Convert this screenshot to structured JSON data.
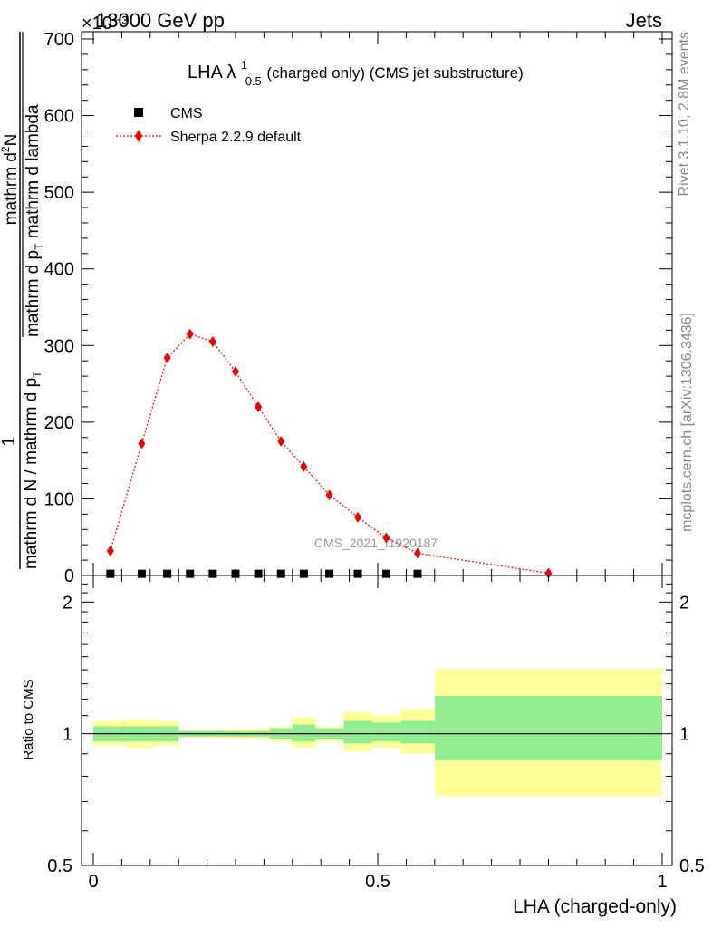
{
  "header": {
    "left": "13000 GeV pp",
    "right": "Jets",
    "exponent": "×10⁻³"
  },
  "side": {
    "rivet": "Rivet 3.1.10,  2.8M events",
    "mcplots": "mcplots.cern.ch [arXiv:1306.3436]"
  },
  "plot_title": {
    "main": "LHA λ",
    "sup": "1",
    "sub": "0.5",
    "tail": " (charged only) (CMS jet substructure)"
  },
  "watermark": "CMS_2021_I1920187",
  "colors": {
    "mc": "#ee0000",
    "data": "#000000",
    "band_inner": "#90ee90",
    "band_outer": "#ffff99"
  },
  "chart_data": [
    {
      "type": "line",
      "panel": "main",
      "ylabel": "1 / mathrm d N / mathrm d p_T mathrm d^2N / mathrm d p_T mathrm d lambda",
      "ylabel_parts": {
        "numerator": "mathrm d",
        "numerator_sup": "2",
        "numerator_tail": "N",
        "denominator": "mathrm d p",
        "denominator_sub": "T",
        "denominator_tail": " mathrm d lambda",
        "left_numerator": "1",
        "left_denominator": "mathrm d N / mathrm d p",
        "left_denominator_sub": "T"
      },
      "ylim": [
        0,
        0.7
      ],
      "yticks": [
        0,
        0.1,
        0.2,
        0.3,
        0.4,
        0.5,
        0.6,
        0.7
      ],
      "yticklabels": [
        "0",
        "100",
        "200",
        "300",
        "400",
        "500",
        "600",
        "700"
      ],
      "xlim": [
        0,
        1
      ],
      "legend": [
        {
          "name": "CMS",
          "marker": "square"
        },
        {
          "name": "Sherpa 2.2.9 default",
          "marker": "diamond"
        }
      ],
      "legend_position": "top-left",
      "series": [
        {
          "name": "CMS",
          "x": [
            0.03,
            0.085,
            0.13,
            0.17,
            0.21,
            0.25,
            0.29,
            0.33,
            0.37,
            0.415,
            0.465,
            0.515,
            0.57
          ],
          "y": [
            0.001,
            0.001,
            0.001,
            0.001,
            0.001,
            0.001,
            0.001,
            0.001,
            0.001,
            0.001,
            0.001,
            0.001,
            0.001
          ]
        },
        {
          "name": "Sherpa 2.2.9 default",
          "x": [
            0.03,
            0.085,
            0.13,
            0.17,
            0.21,
            0.25,
            0.29,
            0.33,
            0.37,
            0.415,
            0.465,
            0.515,
            0.57,
            0.8
          ],
          "y": [
            0.032,
            0.172,
            0.284,
            0.315,
            0.305,
            0.266,
            0.22,
            0.175,
            0.142,
            0.105,
            0.076,
            0.049,
            0.029,
            0.003
          ]
        }
      ]
    },
    {
      "type": "area",
      "panel": "ratio",
      "ylabel": "Ratio to CMS",
      "xlabel": "LHA (charged-only)",
      "ylim": [
        0.5,
        2.3
      ],
      "log_y": true,
      "yticks": [
        0.5,
        1,
        2
      ],
      "yticklabels": [
        "0.5",
        "1",
        "2"
      ],
      "xticks": [
        0,
        0.5,
        1
      ],
      "xticklabels": [
        "0",
        "0.5",
        "1"
      ],
      "reference": 1,
      "bins": [
        {
          "lo": 0.0,
          "hi": 0.06,
          "inner": [
            0.96,
            1.04
          ],
          "outer": [
            0.94,
            1.07
          ]
        },
        {
          "lo": 0.06,
          "hi": 0.11,
          "inner": [
            0.96,
            1.04
          ],
          "outer": [
            0.93,
            1.08
          ]
        },
        {
          "lo": 0.11,
          "hi": 0.15,
          "inner": [
            0.96,
            1.04
          ],
          "outer": [
            0.94,
            1.07
          ]
        },
        {
          "lo": 0.15,
          "hi": 0.19,
          "inner": [
            0.985,
            1.015
          ],
          "outer": [
            0.98,
            1.02
          ]
        },
        {
          "lo": 0.19,
          "hi": 0.23,
          "inner": [
            0.985,
            1.015
          ],
          "outer": [
            0.98,
            1.02
          ]
        },
        {
          "lo": 0.23,
          "hi": 0.27,
          "inner": [
            0.985,
            1.015
          ],
          "outer": [
            0.975,
            1.025
          ]
        },
        {
          "lo": 0.27,
          "hi": 0.31,
          "inner": [
            0.985,
            1.015
          ],
          "outer": [
            0.975,
            1.025
          ]
        },
        {
          "lo": 0.31,
          "hi": 0.35,
          "inner": [
            0.97,
            1.03
          ],
          "outer": [
            0.96,
            1.04
          ]
        },
        {
          "lo": 0.35,
          "hi": 0.39,
          "inner": [
            0.96,
            1.05
          ],
          "outer": [
            0.93,
            1.09
          ]
        },
        {
          "lo": 0.39,
          "hi": 0.44,
          "inner": [
            0.97,
            1.03
          ],
          "outer": [
            0.96,
            1.04
          ]
        },
        {
          "lo": 0.44,
          "hi": 0.49,
          "inner": [
            0.95,
            1.07
          ],
          "outer": [
            0.91,
            1.12
          ]
        },
        {
          "lo": 0.49,
          "hi": 0.54,
          "inner": [
            0.96,
            1.06
          ],
          "outer": [
            0.93,
            1.1
          ]
        },
        {
          "lo": 0.54,
          "hi": 0.6,
          "inner": [
            0.95,
            1.07
          ],
          "outer": [
            0.9,
            1.14
          ]
        },
        {
          "lo": 0.6,
          "hi": 1.0,
          "inner": [
            0.87,
            1.22
          ],
          "outer": [
            0.72,
            1.41
          ]
        }
      ]
    }
  ]
}
